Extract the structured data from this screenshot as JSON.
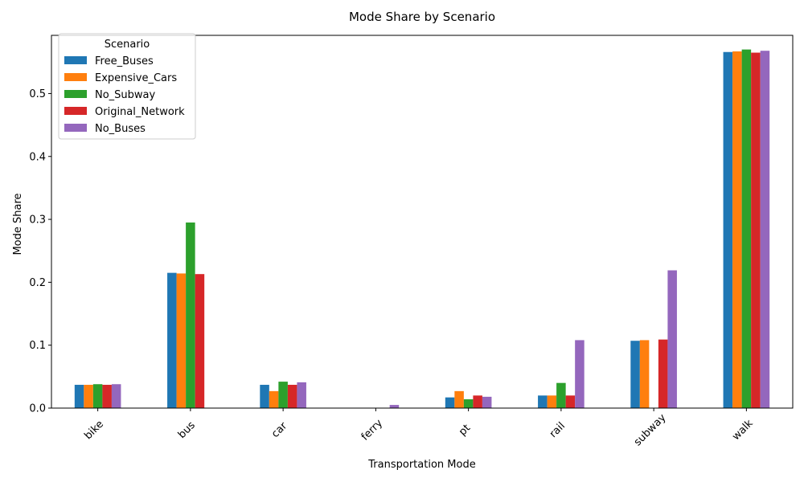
{
  "chart_data": {
    "type": "bar",
    "title": "Mode Share by Scenario",
    "xlabel": "Transportation Mode",
    "ylabel": "Mode Share",
    "ylim": [
      0,
      0.5925
    ],
    "yticks": [
      0.0,
      0.1,
      0.2,
      0.3,
      0.4,
      0.5
    ],
    "ytick_labels": [
      "0.0",
      "0.1",
      "0.2",
      "0.3",
      "0.4",
      "0.5"
    ],
    "grid": false,
    "legend": {
      "title": "Scenario",
      "position": "top-left"
    },
    "categories": [
      "bike",
      "bus",
      "car",
      "ferry",
      "pt",
      "rail",
      "subway",
      "walk"
    ],
    "series": [
      {
        "name": "Free_Buses",
        "color": "#1f77b4",
        "values": [
          0.037,
          0.215,
          0.037,
          0.0,
          0.017,
          0.02,
          0.107,
          0.566
        ]
      },
      {
        "name": "Expensive_Cars",
        "color": "#ff7f0e",
        "values": [
          0.037,
          0.214,
          0.027,
          0.0,
          0.027,
          0.02,
          0.108,
          0.567
        ]
      },
      {
        "name": "No_Subway",
        "color": "#2ca02c",
        "values": [
          0.038,
          0.295,
          0.042,
          0.0,
          0.014,
          0.04,
          0.0,
          0.57
        ]
      },
      {
        "name": "Original_Network",
        "color": "#d62728",
        "values": [
          0.037,
          0.213,
          0.037,
          0.0,
          0.02,
          0.02,
          0.109,
          0.565
        ]
      },
      {
        "name": "No_Buses",
        "color": "#9467bd",
        "values": [
          0.038,
          0.0,
          0.041,
          0.005,
          0.018,
          0.108,
          0.219,
          0.568
        ]
      }
    ]
  }
}
